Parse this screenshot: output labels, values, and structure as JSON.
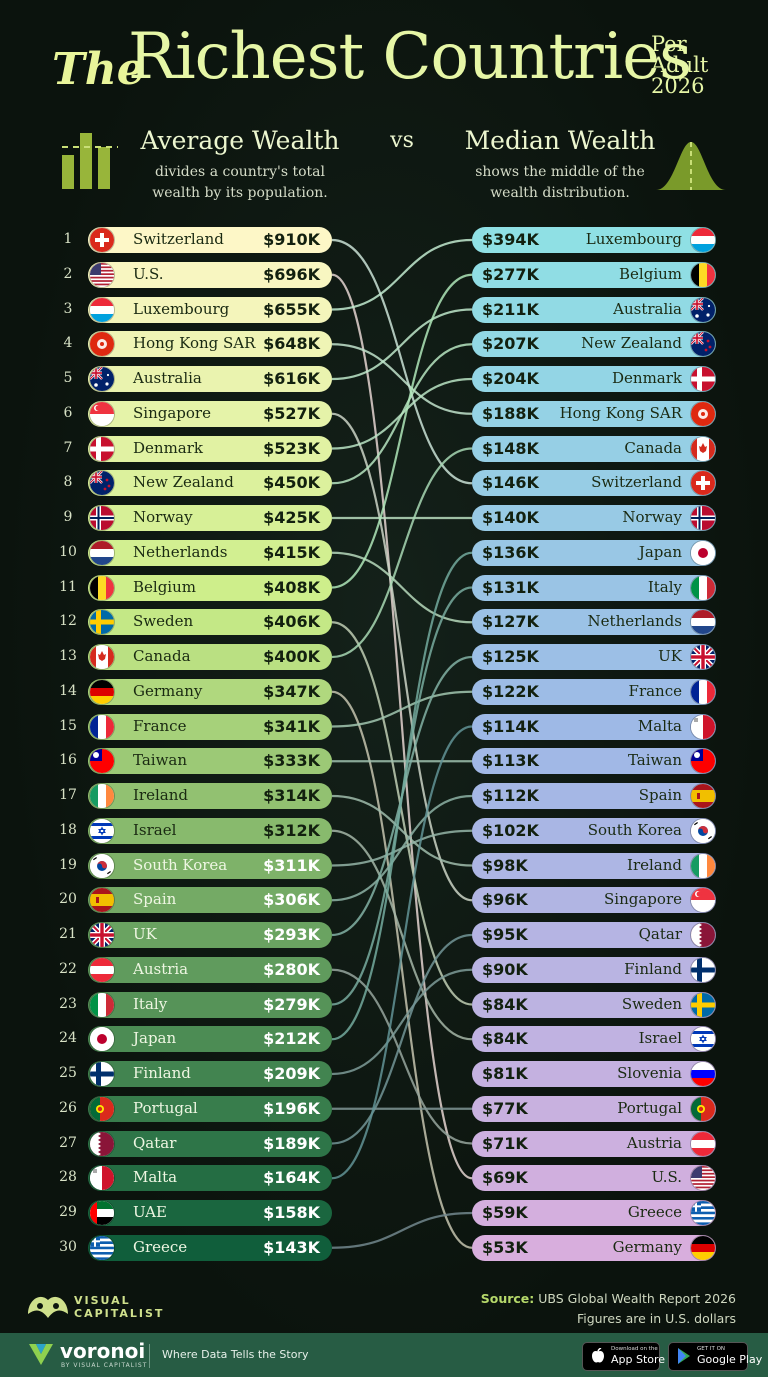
{
  "title": {
    "the": "The",
    "main": "Richest Countries",
    "side": [
      "Per",
      "Adult",
      "2026"
    ]
  },
  "left_header": {
    "title": "Average Wealth",
    "subtitle": [
      "divides a country's total",
      "wealth by its population."
    ]
  },
  "vs": "vs",
  "right_header": {
    "title": "Median Wealth",
    "subtitle": [
      "shows the middle of the",
      "wealth distribution."
    ]
  },
  "colors": {
    "background": "#0d160f",
    "title": "#e6f6a6",
    "left_top": "#fdf7c7",
    "left_bottom": "#105e3b",
    "right_top": "#8fe0e4",
    "right_bottom": "#d8aedd",
    "footer": "#275c44"
  },
  "chart_data": [
    {
      "type": "bar",
      "name": "Average Wealth",
      "categories": [
        "Switzerland",
        "U.S.",
        "Luxembourg",
        "Hong Kong SAR",
        "Australia",
        "Singapore",
        "Denmark",
        "New Zealand",
        "Norway",
        "Netherlands",
        "Belgium",
        "Sweden",
        "Canada",
        "Germany",
        "France",
        "Taiwan",
        "Ireland",
        "Israel",
        "South Korea",
        "Spain",
        "UK",
        "Austria",
        "Italy",
        "Japan",
        "Finland",
        "Portugal",
        "Qatar",
        "Malta",
        "UAE",
        "Greece"
      ],
      "ranks": [
        1,
        2,
        3,
        4,
        5,
        6,
        7,
        8,
        9,
        10,
        11,
        12,
        13,
        14,
        15,
        16,
        17,
        18,
        19,
        20,
        21,
        22,
        23,
        24,
        25,
        26,
        27,
        28,
        29,
        30
      ],
      "labels": [
        "$910K",
        "$696K",
        "$655K",
        "$648K",
        "$616K",
        "$527K",
        "$523K",
        "$450K",
        "$425K",
        "$415K",
        "$408K",
        "$406K",
        "$400K",
        "$347K",
        "$341K",
        "$333K",
        "$314K",
        "$312K",
        "$311K",
        "$306K",
        "$293K",
        "$280K",
        "$279K",
        "$212K",
        "$209K",
        "$196K",
        "$189K",
        "$164K",
        "$158K",
        "$143K"
      ],
      "values": [
        910,
        696,
        655,
        648,
        616,
        527,
        523,
        450,
        425,
        415,
        408,
        406,
        400,
        347,
        341,
        333,
        314,
        312,
        311,
        306,
        293,
        280,
        279,
        212,
        209,
        196,
        189,
        164,
        158,
        143
      ],
      "unit": "K USD"
    },
    {
      "type": "bar",
      "name": "Median Wealth",
      "categories": [
        "Luxembourg",
        "Belgium",
        "Australia",
        "New Zealand",
        "Denmark",
        "Hong Kong SAR",
        "Canada",
        "Switzerland",
        "Norway",
        "Japan",
        "Italy",
        "Netherlands",
        "UK",
        "France",
        "Malta",
        "Taiwan",
        "Spain",
        "South Korea",
        "Ireland",
        "Singapore",
        "Qatar",
        "Finland",
        "Sweden",
        "Israel",
        "Slovenia",
        "Portugal",
        "Austria",
        "U.S.",
        "Greece",
        "Germany"
      ],
      "labels": [
        "$394K",
        "$277K",
        "$211K",
        "$207K",
        "$204K",
        "$188K",
        "$148K",
        "$146K",
        "$140K",
        "$136K",
        "$131K",
        "$127K",
        "$125K",
        "$122K",
        "$114K",
        "$113K",
        "$112K",
        "$102K",
        "$98K",
        "$96K",
        "$95K",
        "$90K",
        "$84K",
        "$84K",
        "$81K",
        "$77K",
        "$71K",
        "$69K",
        "$59K",
        "$53K"
      ],
      "values": [
        394,
        277,
        211,
        207,
        204,
        188,
        148,
        146,
        140,
        136,
        131,
        127,
        125,
        122,
        114,
        113,
        112,
        102,
        98,
        96,
        95,
        90,
        84,
        84,
        81,
        77,
        71,
        69,
        59,
        53
      ],
      "unit": "K USD"
    }
  ],
  "links": [
    [
      1,
      8
    ],
    [
      2,
      28
    ],
    [
      3,
      1
    ],
    [
      4,
      6
    ],
    [
      5,
      3
    ],
    [
      6,
      20
    ],
    [
      7,
      5
    ],
    [
      8,
      4
    ],
    [
      9,
      9
    ],
    [
      10,
      12
    ],
    [
      11,
      2
    ],
    [
      12,
      23
    ],
    [
      13,
      7
    ],
    [
      14,
      30
    ],
    [
      15,
      14
    ],
    [
      16,
      16
    ],
    [
      17,
      19
    ],
    [
      18,
      24
    ],
    [
      19,
      18
    ],
    [
      20,
      17
    ],
    [
      21,
      13
    ],
    [
      22,
      27
    ],
    [
      23,
      11
    ],
    [
      24,
      10
    ],
    [
      25,
      22
    ],
    [
      26,
      26
    ],
    [
      27,
      21
    ],
    [
      28,
      15
    ],
    [
      30,
      29
    ]
  ],
  "source": {
    "label": "Source:",
    "text": "UBS Global Wealth Report 2026",
    "note": "Figures are in U.S. dollars"
  },
  "brand": {
    "logo_lines": [
      "VISUAL",
      "CAPITALIST"
    ],
    "voronoi": "voronoi",
    "by": "BY VISUAL CAPITALIST",
    "tagline": "Where Data Tells the Story"
  },
  "stores": {
    "apple_small": "Download on the",
    "apple": "App Store",
    "google_small": "GET IT ON",
    "google": "Google Play"
  }
}
